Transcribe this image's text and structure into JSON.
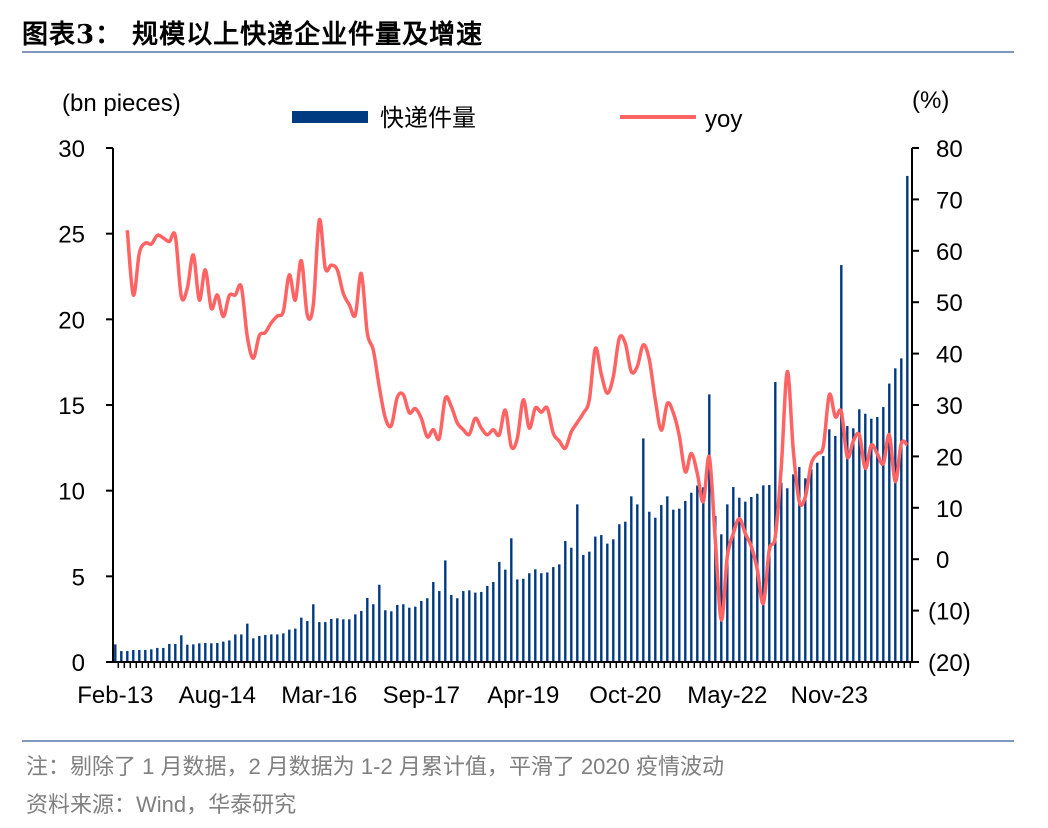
{
  "title": "图表3：  规模以上快递企业件量及增速",
  "notes": [
    "注：剔除了 1 月数据，2 月数据为 1-2 月累计值，平滑了 2020 疫情波动",
    "资料来源：Wind，华泰研究"
  ],
  "chart_data": {
    "type": "bar+line",
    "left_axis_label": "(bn pieces)",
    "right_axis_label": "(%)",
    "ylim_left": [
      0,
      30
    ],
    "ylim_right": [
      -20,
      80
    ],
    "left_ticks": [
      "0",
      "5",
      "10",
      "15",
      "20",
      "25",
      "30"
    ],
    "right_ticks": [
      "(20)",
      "(10)",
      "0",
      "10",
      "20",
      "30",
      "40",
      "50",
      "60",
      "70",
      "80"
    ],
    "x_tick_labels": [
      "Feb-13",
      "Aug-14",
      "Mar-16",
      "Sep-17",
      "Apr-19",
      "Oct-20",
      "May-22",
      "Nov-23"
    ],
    "grid": false,
    "legend_position": "top",
    "colors": {
      "bar": "#003a80",
      "line": "#ff6363"
    },
    "x": [
      "Feb-13",
      "Mar-13",
      "Apr-13",
      "May-13",
      "Jun-13",
      "Jul-13",
      "Aug-13",
      "Sep-13",
      "Oct-13",
      "Nov-13",
      "Dec-13",
      "Feb-14",
      "Mar-14",
      "Apr-14",
      "May-14",
      "Jun-14",
      "Jul-14",
      "Aug-14",
      "Sep-14",
      "Oct-14",
      "Nov-14",
      "Dec-14",
      "Feb-15",
      "Mar-15",
      "Apr-15",
      "May-15",
      "Jun-15",
      "Jul-15",
      "Aug-15",
      "Sep-15",
      "Oct-15",
      "Nov-15",
      "Dec-15",
      "Feb-16",
      "Mar-16",
      "Apr-16",
      "May-16",
      "Jun-16",
      "Jul-16",
      "Aug-16",
      "Sep-16",
      "Oct-16",
      "Nov-16",
      "Dec-16",
      "Feb-17",
      "Mar-17",
      "Apr-17",
      "May-17",
      "Jun-17",
      "Jul-17",
      "Aug-17",
      "Sep-17",
      "Oct-17",
      "Nov-17",
      "Dec-17",
      "Feb-18",
      "Mar-18",
      "Apr-18",
      "May-18",
      "Jun-18",
      "Jul-18",
      "Aug-18",
      "Sep-18",
      "Oct-18",
      "Nov-18",
      "Dec-18",
      "Feb-19",
      "Mar-19",
      "Apr-19",
      "May-19",
      "Jun-19",
      "Jul-19",
      "Aug-19",
      "Sep-19",
      "Oct-19",
      "Nov-19",
      "Dec-19",
      "Feb-20",
      "Mar-20",
      "Apr-20",
      "May-20",
      "Jun-20",
      "Jul-20",
      "Aug-20",
      "Sep-20",
      "Oct-20",
      "Nov-20",
      "Dec-20",
      "Feb-21",
      "Mar-21",
      "Apr-21",
      "May-21",
      "Jun-21",
      "Jul-21",
      "Aug-21",
      "Sep-21",
      "Oct-21",
      "Nov-21",
      "Dec-21",
      "Feb-22",
      "Mar-22",
      "Apr-22",
      "May-22",
      "Jun-22",
      "Jul-22",
      "Aug-22",
      "Sep-22",
      "Oct-22",
      "Nov-22",
      "Dec-22",
      "Feb-23",
      "Mar-23",
      "Apr-23",
      "May-23",
      "Jun-23",
      "Jul-23",
      "Aug-23",
      "Sep-23",
      "Oct-23",
      "Nov-23",
      "Dec-23",
      "Feb-24",
      "Mar-24",
      "Apr-24",
      "May-24",
      "Jun-24",
      "Jul-24",
      "Aug-24",
      "Sep-24",
      "Oct-24",
      "Nov-24",
      "Dec-24",
      "Feb-25"
    ],
    "series": [
      {
        "name": "快递件量",
        "type": "bar",
        "axis": "left",
        "values": [
          1.03,
          0.64,
          0.64,
          0.7,
          0.7,
          0.7,
          0.74,
          0.82,
          0.82,
          1.05,
          1.05,
          1.56,
          1.01,
          1.03,
          1.09,
          1.11,
          1.09,
          1.11,
          1.19,
          1.26,
          1.61,
          1.61,
          2.24,
          1.38,
          1.52,
          1.58,
          1.61,
          1.61,
          1.67,
          1.89,
          1.95,
          2.59,
          2.39,
          3.37,
          2.33,
          2.33,
          2.51,
          2.55,
          2.49,
          2.49,
          2.78,
          2.98,
          3.74,
          3.37,
          4.51,
          3.02,
          2.96,
          3.33,
          3.37,
          3.17,
          3.23,
          3.56,
          3.72,
          4.67,
          4.14,
          5.93,
          3.91,
          3.72,
          4.14,
          4.18,
          4.05,
          4.09,
          4.44,
          4.67,
          5.84,
          5.39,
          7.22,
          4.82,
          4.86,
          5.18,
          5.41,
          5.18,
          5.23,
          5.54,
          5.7,
          7.06,
          6.67,
          9.2,
          6.25,
          6.44,
          7.32,
          7.41,
          6.91,
          7.16,
          8.04,
          8.19,
          9.67,
          9.2,
          13.05,
          8.77,
          8.42,
          9.16,
          9.67,
          8.89,
          8.95,
          9.4,
          9.88,
          10.3,
          10.2,
          15.62,
          8.52,
          7.45,
          9.2,
          10.21,
          9.59,
          9.36,
          9.63,
          9.82,
          10.31,
          10.33,
          16.34,
          10.47,
          10.14,
          10.95,
          11.38,
          10.72,
          11.25,
          11.63,
          12.02,
          13.58,
          13.19,
          23.17,
          13.77,
          13.64,
          14.75,
          14.49,
          14.2,
          14.3,
          14.88,
          16.25,
          17.14,
          17.72,
          28.37
        ]
      },
      {
        "name": "yoy",
        "type": "line",
        "axis": "right",
        "values": [
          null,
          null,
          64.0,
          51.4,
          59.5,
          61.5,
          61.3,
          63.0,
          62.5,
          61.8,
          62.9,
          51.1,
          52.7,
          59.2,
          50.4,
          56.3,
          48.8,
          51.4,
          47.2,
          51.3,
          51.4,
          53.0,
          43.3,
          39.1,
          43.5,
          44.1,
          46.0,
          47.3,
          48.2,
          55.3,
          50.4,
          58.1,
          47.5,
          49.5,
          66.0,
          56.6,
          57.2,
          56.3,
          51.7,
          49.5,
          47.5,
          55.6,
          44.0,
          40.7,
          33.5,
          27.5,
          26.0,
          31.5,
          32.0,
          28.5,
          29.3,
          27.4,
          23.8,
          25.2,
          23.5,
          31.3,
          29.7,
          26.5,
          25.2,
          24.3,
          27.4,
          25.5,
          24.2,
          25.2,
          24.2,
          29.0,
          21.9,
          23.5,
          31.0,
          25.5,
          29.4,
          28.6,
          29.4,
          24.5,
          23.0,
          21.6,
          24.8,
          26.6,
          28.4,
          31.0,
          41.0,
          36.0,
          32.3,
          35.5,
          43.0,
          42.0,
          36.5,
          37.5,
          41.7,
          38.8,
          31.0,
          25.1,
          30.3,
          28.5,
          24.0,
          17.0,
          20.6,
          16.7,
          11.2,
          19.9,
          3.7,
          -11.8,
          0.5,
          5.0,
          7.9,
          5.0,
          2.5,
          -2.0,
          -8.6,
          1.8,
          4.4,
          18.0,
          36.5,
          21.2,
          11.2,
          12.1,
          18.6,
          20.5,
          21.9,
          32.0,
          27.7,
          28.7,
          19.9,
          23.0,
          24.2,
          17.7,
          22.2,
          20.5,
          18.6,
          24.2,
          15.1,
          22.5,
          22.2
        ]
      }
    ]
  }
}
